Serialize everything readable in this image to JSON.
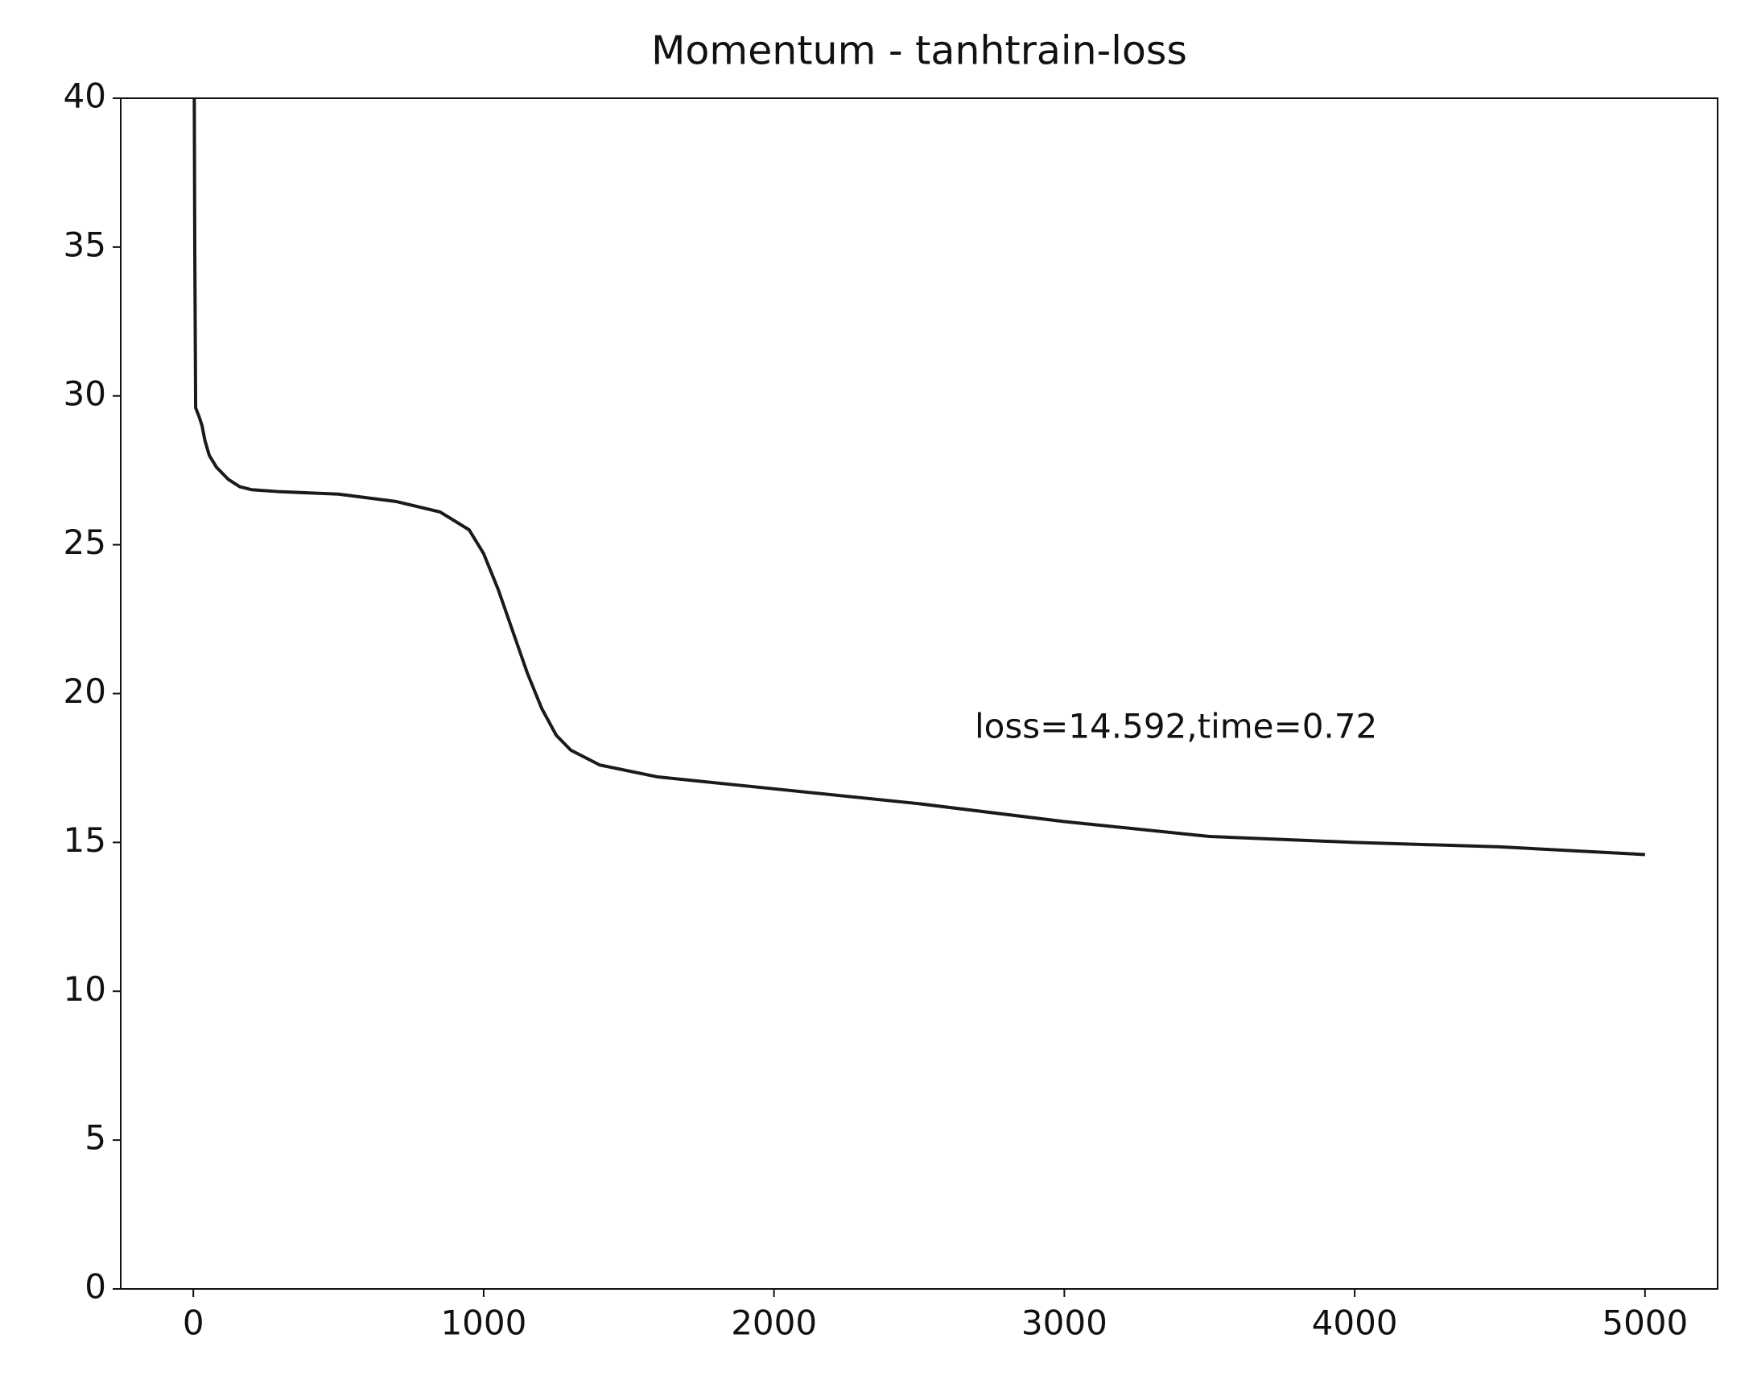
{
  "chart_data": {
    "type": "line",
    "title": "Momentum - tanhtrain-loss",
    "annotation": "loss=14.592,time=0.72",
    "x": [
      0,
      5,
      8,
      20,
      30,
      40,
      55,
      80,
      120,
      160,
      200,
      300,
      500,
      700,
      850,
      950,
      1000,
      1050,
      1100,
      1150,
      1200,
      1250,
      1300,
      1400,
      1600,
      2000,
      2500,
      3000,
      3500,
      4000,
      4500,
      5000
    ],
    "series": [
      {
        "name": "train-loss",
        "color": "#1a1a1a",
        "values": [
          50,
          35,
          29.6,
          29.3,
          29.0,
          28.5,
          28.0,
          27.6,
          27.2,
          26.95,
          26.85,
          26.78,
          26.7,
          26.45,
          26.1,
          25.5,
          24.7,
          23.5,
          22.1,
          20.7,
          19.5,
          18.6,
          18.1,
          17.6,
          17.2,
          16.8,
          16.3,
          15.7,
          15.2,
          15.0,
          14.85,
          14.592
        ]
      }
    ],
    "xlim": [
      -250,
      5250
    ],
    "ylim": [
      0,
      40
    ],
    "xticks": [
      0,
      1000,
      2000,
      3000,
      4000,
      5000
    ],
    "yticks": [
      0,
      5,
      10,
      15,
      20,
      25,
      30,
      35,
      40
    ],
    "grid": false
  }
}
